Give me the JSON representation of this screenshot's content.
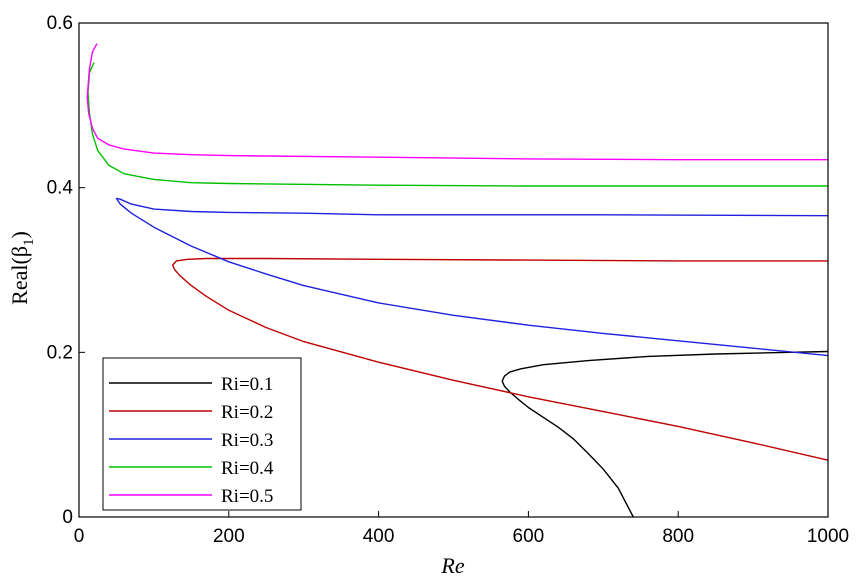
{
  "chart_data": {
    "type": "line",
    "xlabel": "Re",
    "ylabel_main": "Real(β",
    "ylabel_sub": "1",
    "ylabel_close": ")",
    "xlim": [
      0,
      1000
    ],
    "ylim": [
      0,
      0.6
    ],
    "xticks": [
      0,
      200,
      400,
      600,
      800,
      1000
    ],
    "xtick_labels": [
      "0",
      "200",
      "400",
      "600",
      "800",
      "1000"
    ],
    "yticks": [
      0,
      0.2,
      0.4,
      0.6
    ],
    "ytick_labels": [
      "0",
      "0.2",
      "0.4",
      "0.6"
    ],
    "grid": false,
    "legend_position": "bottom-left",
    "series": [
      {
        "name": "Ri=0.1",
        "color": "#000000",
        "x": [
          740,
          720,
          700,
          680,
          660,
          640,
          620,
          600,
          585,
          575,
          568,
          565,
          568,
          575,
          590,
          620,
          680,
          760,
          850,
          950,
          1000
        ],
        "y": [
          0,
          0.035,
          0.058,
          0.077,
          0.095,
          0.109,
          0.121,
          0.133,
          0.144,
          0.152,
          0.159,
          0.165,
          0.171,
          0.176,
          0.18,
          0.185,
          0.19,
          0.195,
          0.198,
          0.2,
          0.201
        ]
      },
      {
        "name": "Ri=0.2",
        "color": "#c00000",
        "x": [
          1000,
          900,
          800,
          700,
          600,
          500,
          400,
          300,
          250,
          200,
          170,
          150,
          135,
          128,
          125,
          130,
          145,
          170,
          250,
          400,
          600,
          800,
          1000
        ],
        "y": [
          0.069,
          0.09,
          0.11,
          0.128,
          0.146,
          0.166,
          0.188,
          0.213,
          0.23,
          0.251,
          0.268,
          0.281,
          0.293,
          0.3,
          0.306,
          0.311,
          0.313,
          0.314,
          0.314,
          0.313,
          0.312,
          0.311,
          0.311
        ]
      },
      {
        "name": "Ri=0.3",
        "color": "#2020e0",
        "x": [
          1000,
          900,
          800,
          700,
          600,
          500,
          400,
          300,
          250,
          200,
          150,
          100,
          70,
          55,
          50,
          55,
          70,
          100,
          150,
          200,
          300,
          400,
          500,
          700,
          1000
        ],
        "y": [
          0.196,
          0.205,
          0.214,
          0.223,
          0.233,
          0.245,
          0.26,
          0.281,
          0.295,
          0.31,
          0.329,
          0.352,
          0.369,
          0.38,
          0.387,
          0.386,
          0.38,
          0.374,
          0.371,
          0.37,
          0.369,
          0.367,
          0.367,
          0.367,
          0.366
        ]
      },
      {
        "name": "Ri=0.4",
        "color": "#00c000",
        "x": [
          20,
          14,
          12,
          14,
          18,
          25,
          40,
          60,
          100,
          150,
          200,
          400,
          600,
          800,
          1000
        ],
        "y": [
          0.552,
          0.54,
          0.515,
          0.49,
          0.465,
          0.445,
          0.427,
          0.417,
          0.41,
          0.406,
          0.405,
          0.403,
          0.402,
          0.402,
          0.402
        ]
      },
      {
        "name": "Ri=0.5",
        "color": "#ff00ff",
        "x": [
          24,
          18,
          14,
          11,
          13,
          18,
          25,
          40,
          60,
          100,
          150,
          200,
          400,
          600,
          800,
          1000
        ],
        "y": [
          0.575,
          0.565,
          0.545,
          0.51,
          0.49,
          0.472,
          0.46,
          0.452,
          0.447,
          0.442,
          0.44,
          0.439,
          0.437,
          0.435,
          0.434,
          0.434
        ]
      }
    ]
  }
}
